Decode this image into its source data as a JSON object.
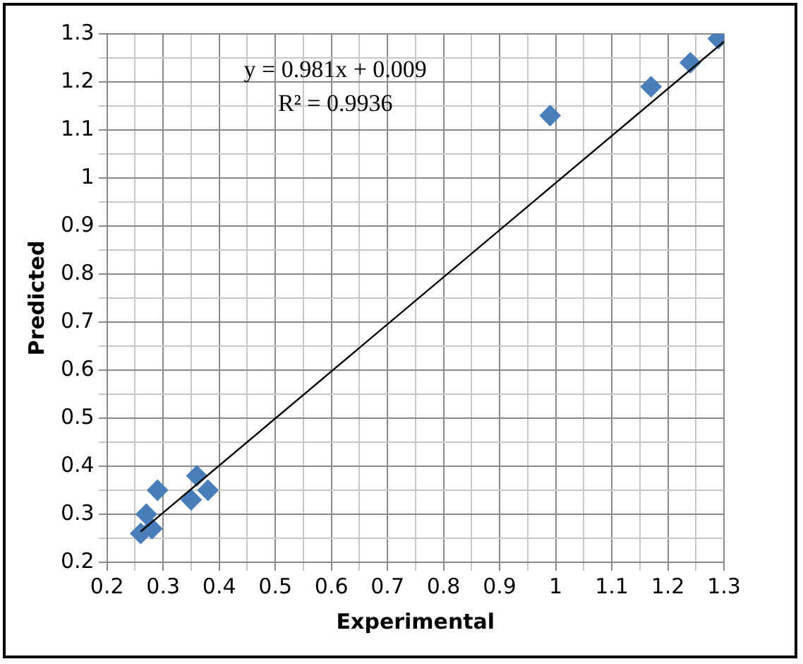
{
  "chart_data": {
    "type": "scatter",
    "xlabel": "Experimental",
    "ylabel": "Predicted",
    "xlim": [
      0.2,
      1.3
    ],
    "ylim": [
      0.2,
      1.3
    ],
    "xticks": [
      0.2,
      {
        "value": 0.25,
        "label": null
      },
      0.3,
      {
        "value": 0.35,
        "label": null
      },
      0.4,
      {
        "value": 0.45,
        "label": null
      },
      0.5,
      {
        "value": 0.55,
        "label": null
      },
      0.6,
      {
        "value": 0.65,
        "label": null
      },
      0.7,
      {
        "value": 0.75,
        "label": null
      },
      0.8,
      {
        "value": 0.85,
        "label": null
      },
      0.9,
      {
        "value": 0.95,
        "label": null
      },
      1,
      {
        "value": 1.05,
        "label": null
      },
      1.1,
      {
        "value": 1.15,
        "label": null
      },
      1.2,
      {
        "value": 1.25,
        "label": null
      },
      1.3
    ],
    "yticks": [
      0.2,
      {
        "value": 0.25,
        "label": null
      },
      0.3,
      {
        "value": 0.35,
        "label": null
      },
      0.4,
      {
        "value": 0.45,
        "label": null
      },
      0.5,
      {
        "value": 0.55,
        "label": null
      },
      0.6,
      {
        "value": 0.65,
        "label": null
      },
      0.7,
      {
        "value": 0.75,
        "label": null
      },
      0.8,
      {
        "value": 0.85,
        "label": null
      },
      0.9,
      {
        "value": 0.95,
        "label": null
      },
      1,
      {
        "value": 1.05,
        "label": null
      },
      1.1,
      {
        "value": 1.15,
        "label": null
      },
      1.2,
      {
        "value": 1.25,
        "label": null
      },
      1.3
    ],
    "grid": true,
    "legend": false,
    "series": [
      {
        "type": "scatter",
        "color": "#4a7ebb",
        "marker": "diamond",
        "x": [
          0.26,
          0.27,
          0.28,
          0.29,
          0.36,
          0.38,
          0.35,
          0.99,
          1.17,
          1.24,
          1.29
        ],
        "values": [
          0.26,
          0.3,
          0.27,
          0.35,
          0.38,
          0.35,
          0.33,
          1.13,
          1.19,
          1.24,
          1.29
        ]
      },
      {
        "type": "line",
        "color": "#000000",
        "marker": "none",
        "line_style": "solid",
        "x": [
          0.26,
          1.3
        ],
        "values": [
          0.264,
          1.284
        ]
      }
    ],
    "annotations": [
      "y = 0.981x + 0.009",
      "R² = 0.9936"
    ]
  }
}
